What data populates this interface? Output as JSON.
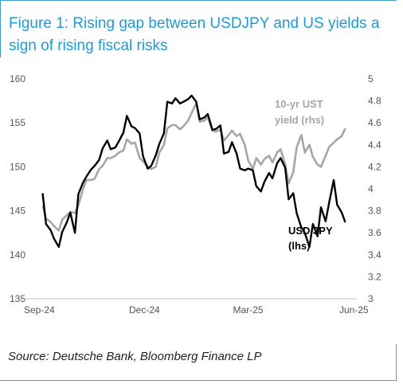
{
  "title": "Figure 1: Rising gap between USDJPY and US yields a sign of rising fiscal risks",
  "source": "Source: Deutsche Bank, Bloomberg Finance LP",
  "colors": {
    "title": "#1f9bd3",
    "usdjpy": "#000000",
    "ust": "#a6a6a6",
    "border": "#3aa0c8"
  },
  "chart_data": {
    "type": "line",
    "x_ticks": [
      "Sep-24",
      "Dec-24",
      "Mar-25",
      "Jun-25"
    ],
    "xlim": [
      "2024-09-01",
      "2025-06-01"
    ],
    "y_left": {
      "lim": [
        135,
        160
      ],
      "ticks": [
        135,
        140,
        145,
        150,
        155,
        160
      ]
    },
    "y_right": {
      "lim": [
        3.0,
        5.0
      ],
      "ticks": [
        "3",
        "3.2",
        "3.4",
        "3.6",
        "3.8",
        "4",
        "4.2",
        "4.4",
        "4.6",
        "4.8",
        "5"
      ]
    },
    "annotations": {
      "ust_line1": "10-yr UST",
      "ust_line2": "yield (rhs)",
      "usdjpy_line1": "USD/JPY",
      "usdjpy_line2": "(lhs)"
    },
    "series": [
      {
        "name": "USD/JPY (lhs)",
        "axis": "left",
        "points": [
          [
            "2024-09-02",
            147.0
          ],
          [
            "2024-09-05",
            143.5
          ],
          [
            "2024-09-09",
            142.8
          ],
          [
            "2024-09-12",
            141.8
          ],
          [
            "2024-09-16",
            140.9
          ],
          [
            "2024-09-19",
            142.6
          ],
          [
            "2024-09-23",
            143.7
          ],
          [
            "2024-09-26",
            144.8
          ],
          [
            "2024-09-30",
            142.5
          ],
          [
            "2024-10-03",
            146.9
          ],
          [
            "2024-10-07",
            148.2
          ],
          [
            "2024-10-10",
            148.9
          ],
          [
            "2024-10-14",
            149.7
          ],
          [
            "2024-10-17",
            150.1
          ],
          [
            "2024-10-21",
            150.8
          ],
          [
            "2024-10-24",
            152.1
          ],
          [
            "2024-10-28",
            153.0
          ],
          [
            "2024-10-31",
            152.0
          ],
          [
            "2024-11-04",
            152.2
          ],
          [
            "2024-11-07",
            152.9
          ],
          [
            "2024-11-11",
            153.9
          ],
          [
            "2024-11-14",
            155.8
          ],
          [
            "2024-11-18",
            154.6
          ],
          [
            "2024-11-21",
            154.4
          ],
          [
            "2024-11-25",
            153.8
          ],
          [
            "2024-11-28",
            151.2
          ],
          [
            "2024-12-02",
            149.8
          ],
          [
            "2024-12-05",
            150.1
          ],
          [
            "2024-12-09",
            151.3
          ],
          [
            "2024-12-12",
            152.6
          ],
          [
            "2024-12-16",
            153.8
          ],
          [
            "2024-12-19",
            157.4
          ],
          [
            "2024-12-23",
            157.2
          ],
          [
            "2024-12-26",
            157.8
          ],
          [
            "2024-12-30",
            157.2
          ],
          [
            "2025-01-02",
            157.4
          ],
          [
            "2025-01-06",
            157.7
          ],
          [
            "2025-01-09",
            158.1
          ],
          [
            "2025-01-13",
            157.4
          ],
          [
            "2025-01-16",
            155.4
          ],
          [
            "2025-01-20",
            155.6
          ],
          [
            "2025-01-23",
            156.0
          ],
          [
            "2025-01-27",
            154.2
          ],
          [
            "2025-01-30",
            154.3
          ],
          [
            "2025-02-03",
            154.7
          ],
          [
            "2025-02-06",
            151.5
          ],
          [
            "2025-02-10",
            151.7
          ],
          [
            "2025-02-13",
            152.8
          ],
          [
            "2025-02-17",
            151.5
          ],
          [
            "2025-02-20",
            149.8
          ],
          [
            "2025-02-24",
            149.6
          ],
          [
            "2025-02-27",
            149.8
          ],
          [
            "2025-03-03",
            149.6
          ],
          [
            "2025-03-06",
            147.8
          ],
          [
            "2025-03-10",
            147.2
          ],
          [
            "2025-03-13",
            148.3
          ],
          [
            "2025-03-17",
            149.3
          ],
          [
            "2025-03-20",
            148.7
          ],
          [
            "2025-03-24",
            150.4
          ],
          [
            "2025-03-27",
            151.0
          ],
          [
            "2025-03-31",
            149.9
          ],
          [
            "2025-04-03",
            146.3
          ],
          [
            "2025-04-07",
            147.0
          ],
          [
            "2025-04-10",
            144.7
          ],
          [
            "2025-04-14",
            143.1
          ],
          [
            "2025-04-17",
            142.5
          ],
          [
            "2025-04-21",
            140.9
          ],
          [
            "2025-04-24",
            143.5
          ],
          [
            "2025-04-28",
            142.1
          ],
          [
            "2025-05-01",
            145.4
          ],
          [
            "2025-05-05",
            143.8
          ],
          [
            "2025-05-08",
            145.9
          ],
          [
            "2025-05-12",
            148.5
          ],
          [
            "2025-05-15",
            145.7
          ],
          [
            "2025-05-19",
            144.8
          ],
          [
            "2025-05-22",
            143.7
          ]
        ]
      },
      {
        "name": "10-yr UST yield (rhs)",
        "axis": "right",
        "points": [
          [
            "2024-09-02",
            3.85
          ],
          [
            "2024-09-05",
            3.73
          ],
          [
            "2024-09-09",
            3.7
          ],
          [
            "2024-09-12",
            3.66
          ],
          [
            "2024-09-16",
            3.62
          ],
          [
            "2024-09-19",
            3.72
          ],
          [
            "2024-09-23",
            3.76
          ],
          [
            "2024-09-26",
            3.79
          ],
          [
            "2024-09-30",
            3.78
          ],
          [
            "2024-10-03",
            3.85
          ],
          [
            "2024-10-07",
            4.0
          ],
          [
            "2024-10-10",
            4.08
          ],
          [
            "2024-10-14",
            4.08
          ],
          [
            "2024-10-17",
            4.09
          ],
          [
            "2024-10-21",
            4.18
          ],
          [
            "2024-10-24",
            4.21
          ],
          [
            "2024-10-28",
            4.28
          ],
          [
            "2024-10-31",
            4.28
          ],
          [
            "2024-11-04",
            4.3
          ],
          [
            "2024-11-07",
            4.33
          ],
          [
            "2024-11-11",
            4.35
          ],
          [
            "2024-11-14",
            4.45
          ],
          [
            "2024-11-18",
            4.41
          ],
          [
            "2024-11-21",
            4.42
          ],
          [
            "2024-11-25",
            4.28
          ],
          [
            "2024-11-28",
            4.25
          ],
          [
            "2024-12-02",
            4.2
          ],
          [
            "2024-12-05",
            4.18
          ],
          [
            "2024-12-09",
            4.2
          ],
          [
            "2024-12-12",
            4.33
          ],
          [
            "2024-12-16",
            4.4
          ],
          [
            "2024-12-19",
            4.55
          ],
          [
            "2024-12-23",
            4.58
          ],
          [
            "2024-12-26",
            4.58
          ],
          [
            "2024-12-30",
            4.54
          ],
          [
            "2025-01-02",
            4.57
          ],
          [
            "2025-01-06",
            4.62
          ],
          [
            "2025-01-09",
            4.69
          ],
          [
            "2025-01-13",
            4.78
          ],
          [
            "2025-01-16",
            4.61
          ],
          [
            "2025-01-20",
            4.62
          ],
          [
            "2025-01-23",
            4.65
          ],
          [
            "2025-01-27",
            4.53
          ],
          [
            "2025-01-30",
            4.52
          ],
          [
            "2025-02-03",
            4.54
          ],
          [
            "2025-02-06",
            4.44
          ],
          [
            "2025-02-10",
            4.49
          ],
          [
            "2025-02-13",
            4.53
          ],
          [
            "2025-02-17",
            4.48
          ],
          [
            "2025-02-20",
            4.5
          ],
          [
            "2025-02-24",
            4.4
          ],
          [
            "2025-02-27",
            4.26
          ],
          [
            "2025-03-03",
            4.18
          ],
          [
            "2025-03-06",
            4.28
          ],
          [
            "2025-03-10",
            4.22
          ],
          [
            "2025-03-13",
            4.27
          ],
          [
            "2025-03-17",
            4.3
          ],
          [
            "2025-03-20",
            4.24
          ],
          [
            "2025-03-24",
            4.33
          ],
          [
            "2025-03-27",
            4.36
          ],
          [
            "2025-03-31",
            4.22
          ],
          [
            "2025-04-03",
            4.05
          ],
          [
            "2025-04-07",
            4.15
          ],
          [
            "2025-04-10",
            4.38
          ],
          [
            "2025-04-14",
            4.49
          ],
          [
            "2025-04-17",
            4.33
          ],
          [
            "2025-04-21",
            4.4
          ],
          [
            "2025-04-24",
            4.29
          ],
          [
            "2025-04-28",
            4.22
          ],
          [
            "2025-05-01",
            4.2
          ],
          [
            "2025-05-05",
            4.3
          ],
          [
            "2025-05-08",
            4.38
          ],
          [
            "2025-05-12",
            4.42
          ],
          [
            "2025-05-15",
            4.45
          ],
          [
            "2025-05-19",
            4.48
          ],
          [
            "2025-05-22",
            4.55
          ]
        ]
      }
    ]
  }
}
